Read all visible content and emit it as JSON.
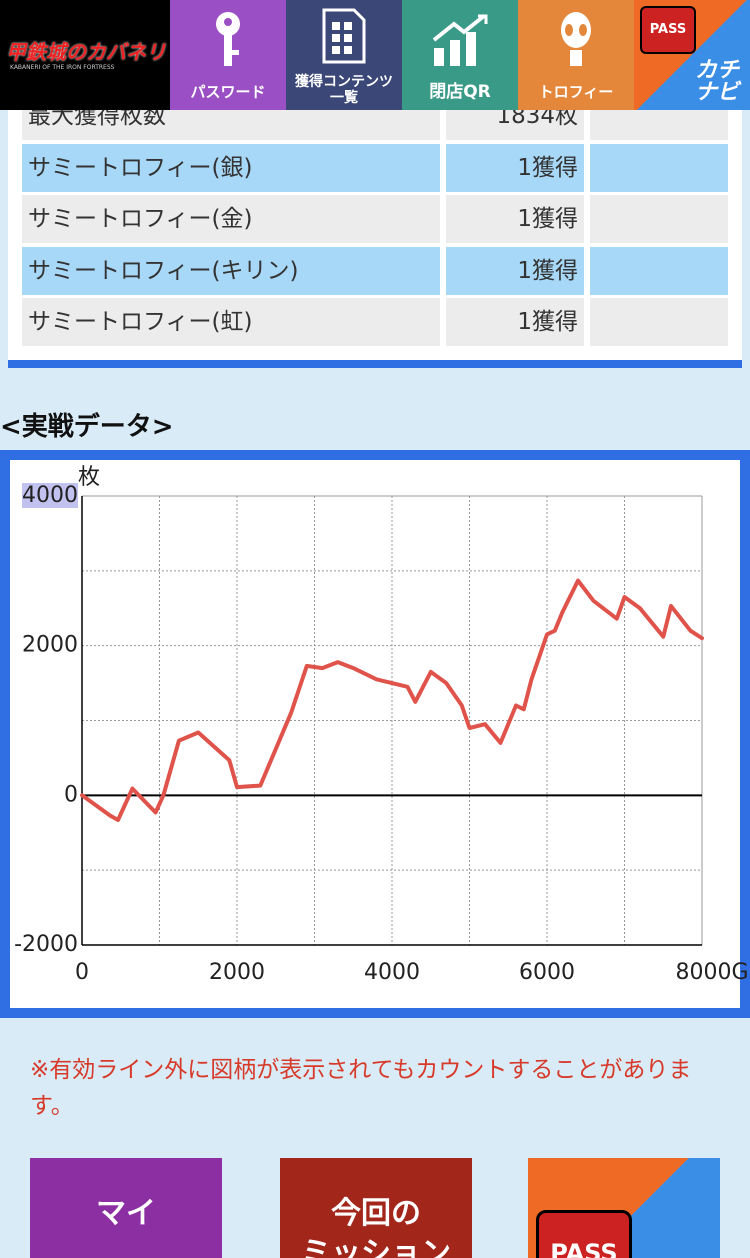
{
  "nav": {
    "logo": {
      "title": "甲鉄城のカバネリ",
      "subtitle": "KABANERI OF THE IRON FORTRESS"
    },
    "items": [
      "パスワード",
      "獲得コンテンツ\n一覧",
      "閉店QR",
      "トロフィー"
    ],
    "kachinavi": {
      "badge": "PASS",
      "text": "カチ\nナビ"
    }
  },
  "table": {
    "rows": [
      [
        "最大獲得枚数",
        "1834枚"
      ],
      [
        "サミートロフィー(銀)",
        "1獲得"
      ],
      [
        "サミートロフィー(金)",
        "1獲得"
      ],
      [
        "サミートロフィー(キリン)",
        "1獲得"
      ],
      [
        "サミートロフィー(虹)",
        "1獲得"
      ]
    ]
  },
  "section_title": "<実戦データ>",
  "chart_data": {
    "type": "line",
    "y_unit": "枚",
    "x": [
      0,
      361,
      464,
      650,
      950,
      1050,
      1250,
      1500,
      1900,
      2000,
      2300,
      2700,
      2900,
      3100,
      3300,
      3500,
      3800,
      4200,
      4300,
      4500,
      4700,
      4900,
      5000,
      5200,
      5400,
      5600,
      5700,
      5800,
      6000,
      6100,
      6200,
      6400,
      6600,
      6900,
      7000,
      7200,
      7500,
      7600,
      7850,
      8000
    ],
    "values": [
      0,
      -270,
      -330,
      90,
      -230,
      0,
      730,
      840,
      470,
      110,
      130,
      1110,
      1730,
      1700,
      1780,
      1700,
      1550,
      1450,
      1250,
      1650,
      1500,
      1200,
      900,
      950,
      700,
      1200,
      1150,
      1550,
      2150,
      2200,
      2450,
      2870,
      2600,
      2360,
      2650,
      2500,
      2120,
      2530,
      2200,
      2100
    ],
    "color": "#e0534b",
    "xlim": [
      0,
      8000
    ],
    "ylim": [
      -2000,
      4000
    ],
    "xticks": [
      0,
      2000,
      4000,
      6000,
      {
        "value": 8000,
        "label": "8000G"
      }
    ],
    "yticks": [
      -2000,
      0,
      2000,
      4000
    ],
    "x_minor_grid": [
      1000,
      3000,
      5000,
      7000
    ],
    "y_minor_grid": [
      -1000,
      1000,
      3000
    ],
    "grid": true
  },
  "notice": "※有効ライン外に図柄が表示されてもカウントすることがあります。",
  "buttons": [
    "マイ",
    "今回の\nミッション",
    "PASS"
  ]
}
